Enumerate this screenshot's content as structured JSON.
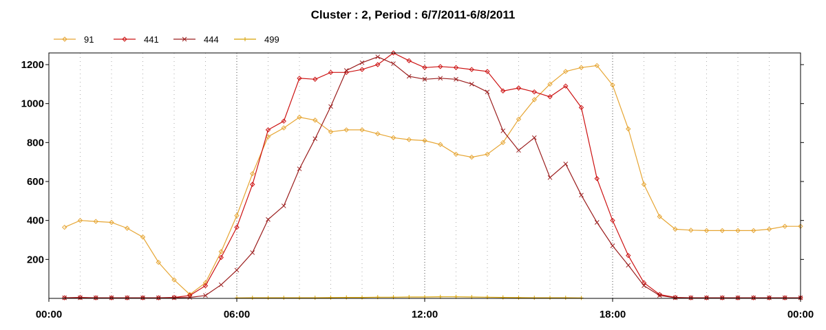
{
  "chart_data": {
    "type": "line",
    "title": "Cluster : 2, Period : 6/7/2011-6/8/2011",
    "xlabel": "",
    "ylabel": "",
    "x_unit": "hours",
    "xlim": [
      0,
      24
    ],
    "ylim": [
      0,
      1260
    ],
    "x_ticks": [
      0,
      6,
      12,
      18,
      24
    ],
    "x_tick_labels": [
      "00:00",
      "06:00",
      "12:00",
      "18:00",
      "00:00"
    ],
    "y_ticks": [
      200,
      400,
      600,
      800,
      1000,
      1200
    ],
    "grid": true,
    "legend_position": "top-left",
    "series": [
      {
        "name": "91",
        "color": "#e6a532",
        "marker": "diamond",
        "points": [
          [
            0.5,
            365
          ],
          [
            1,
            400
          ],
          [
            1.5,
            395
          ],
          [
            2,
            390
          ],
          [
            2.5,
            360
          ],
          [
            3,
            315
          ],
          [
            3.5,
            185
          ],
          [
            4,
            95
          ],
          [
            4.5,
            20
          ],
          [
            5,
            80
          ],
          [
            5.5,
            240
          ],
          [
            6,
            425
          ],
          [
            6.5,
            640
          ],
          [
            7,
            830
          ],
          [
            7.5,
            875
          ],
          [
            8,
            930
          ],
          [
            8.5,
            915
          ],
          [
            9,
            855
          ],
          [
            9.5,
            865
          ],
          [
            10,
            865
          ],
          [
            10.5,
            845
          ],
          [
            11,
            825
          ],
          [
            11.5,
            815
          ],
          [
            12,
            810
          ],
          [
            12.5,
            790
          ],
          [
            13,
            740
          ],
          [
            13.5,
            725
          ],
          [
            14,
            740
          ],
          [
            14.5,
            800
          ],
          [
            15,
            920
          ],
          [
            15.5,
            1020
          ],
          [
            16,
            1100
          ],
          [
            16.5,
            1165
          ],
          [
            17,
            1185
          ],
          [
            17.5,
            1195
          ],
          [
            18,
            1095
          ],
          [
            18.5,
            870
          ],
          [
            19,
            585
          ],
          [
            19.5,
            420
          ],
          [
            20,
            355
          ],
          [
            20.5,
            350
          ],
          [
            21,
            348
          ],
          [
            21.5,
            348
          ],
          [
            22,
            348
          ],
          [
            22.5,
            348
          ],
          [
            23,
            355
          ],
          [
            23.5,
            370
          ],
          [
            24,
            370
          ]
        ]
      },
      {
        "name": "441",
        "color": "#cc1010",
        "marker": "diamond",
        "points": [
          [
            0.5,
            3
          ],
          [
            1,
            5
          ],
          [
            1.5,
            3
          ],
          [
            2,
            3
          ],
          [
            2.5,
            3
          ],
          [
            3,
            3
          ],
          [
            3.5,
            3
          ],
          [
            4,
            5
          ],
          [
            4.5,
            15
          ],
          [
            5,
            65
          ],
          [
            5.5,
            210
          ],
          [
            6,
            365
          ],
          [
            6.5,
            585
          ],
          [
            7,
            865
          ],
          [
            7.5,
            910
          ],
          [
            8,
            1130
          ],
          [
            8.5,
            1125
          ],
          [
            9,
            1160
          ],
          [
            9.5,
            1160
          ],
          [
            10,
            1175
          ],
          [
            10.5,
            1200
          ],
          [
            11,
            1260
          ],
          [
            11.5,
            1220
          ],
          [
            12,
            1185
          ],
          [
            12.5,
            1190
          ],
          [
            13,
            1185
          ],
          [
            13.5,
            1175
          ],
          [
            14,
            1165
          ],
          [
            14.5,
            1065
          ],
          [
            15,
            1080
          ],
          [
            15.5,
            1060
          ],
          [
            16,
            1035
          ],
          [
            16.5,
            1090
          ],
          [
            17,
            980
          ],
          [
            17.5,
            615
          ],
          [
            18,
            400
          ],
          [
            18.5,
            220
          ],
          [
            19,
            80
          ],
          [
            19.5,
            20
          ],
          [
            20,
            5
          ],
          [
            20.5,
            3
          ],
          [
            21,
            3
          ],
          [
            21.5,
            3
          ],
          [
            22,
            3
          ],
          [
            22.5,
            3
          ],
          [
            23,
            3
          ],
          [
            23.5,
            3
          ],
          [
            24,
            3
          ]
        ]
      },
      {
        "name": "444",
        "color": "#9a1c1c",
        "marker": "cross",
        "points": [
          [
            0.5,
            3
          ],
          [
            1,
            3
          ],
          [
            1.5,
            3
          ],
          [
            2,
            3
          ],
          [
            2.5,
            3
          ],
          [
            3,
            3
          ],
          [
            3.5,
            3
          ],
          [
            4,
            3
          ],
          [
            4.5,
            5
          ],
          [
            5,
            15
          ],
          [
            5.5,
            70
          ],
          [
            6,
            145
          ],
          [
            6.5,
            235
          ],
          [
            7,
            405
          ],
          [
            7.5,
            475
          ],
          [
            8,
            665
          ],
          [
            8.5,
            820
          ],
          [
            9,
            985
          ],
          [
            9.5,
            1170
          ],
          [
            10,
            1210
          ],
          [
            10.5,
            1240
          ],
          [
            11,
            1205
          ],
          [
            11.5,
            1140
          ],
          [
            12,
            1125
          ],
          [
            12.5,
            1130
          ],
          [
            13,
            1125
          ],
          [
            13.5,
            1100
          ],
          [
            14,
            1060
          ],
          [
            14.5,
            860
          ],
          [
            15,
            760
          ],
          [
            15.5,
            825
          ],
          [
            16,
            620
          ],
          [
            16.5,
            690
          ],
          [
            17,
            530
          ],
          [
            17.5,
            390
          ],
          [
            18,
            270
          ],
          [
            18.5,
            170
          ],
          [
            19,
            65
          ],
          [
            19.5,
            15
          ],
          [
            20,
            3
          ],
          [
            20.5,
            3
          ],
          [
            21,
            3
          ],
          [
            21.5,
            3
          ],
          [
            22,
            3
          ],
          [
            22.5,
            3
          ],
          [
            23,
            3
          ],
          [
            23.5,
            3
          ],
          [
            24,
            3
          ]
        ]
      },
      {
        "name": "499",
        "color": "#d6a000",
        "marker": "plus",
        "points": [
          [
            6,
            2
          ],
          [
            6.5,
            3
          ],
          [
            7,
            3
          ],
          [
            7.5,
            3
          ],
          [
            8,
            3
          ],
          [
            8.5,
            3
          ],
          [
            9,
            4
          ],
          [
            9.5,
            5
          ],
          [
            10,
            5
          ],
          [
            10.5,
            6
          ],
          [
            11,
            6
          ],
          [
            11.5,
            7
          ],
          [
            12,
            7
          ],
          [
            12.5,
            8
          ],
          [
            13,
            8
          ],
          [
            13.5,
            7
          ],
          [
            14,
            6
          ],
          [
            14.5,
            5
          ],
          [
            15,
            4
          ],
          [
            15.5,
            3
          ],
          [
            16,
            3
          ],
          [
            16.5,
            3
          ],
          [
            17,
            2
          ]
        ]
      }
    ]
  }
}
